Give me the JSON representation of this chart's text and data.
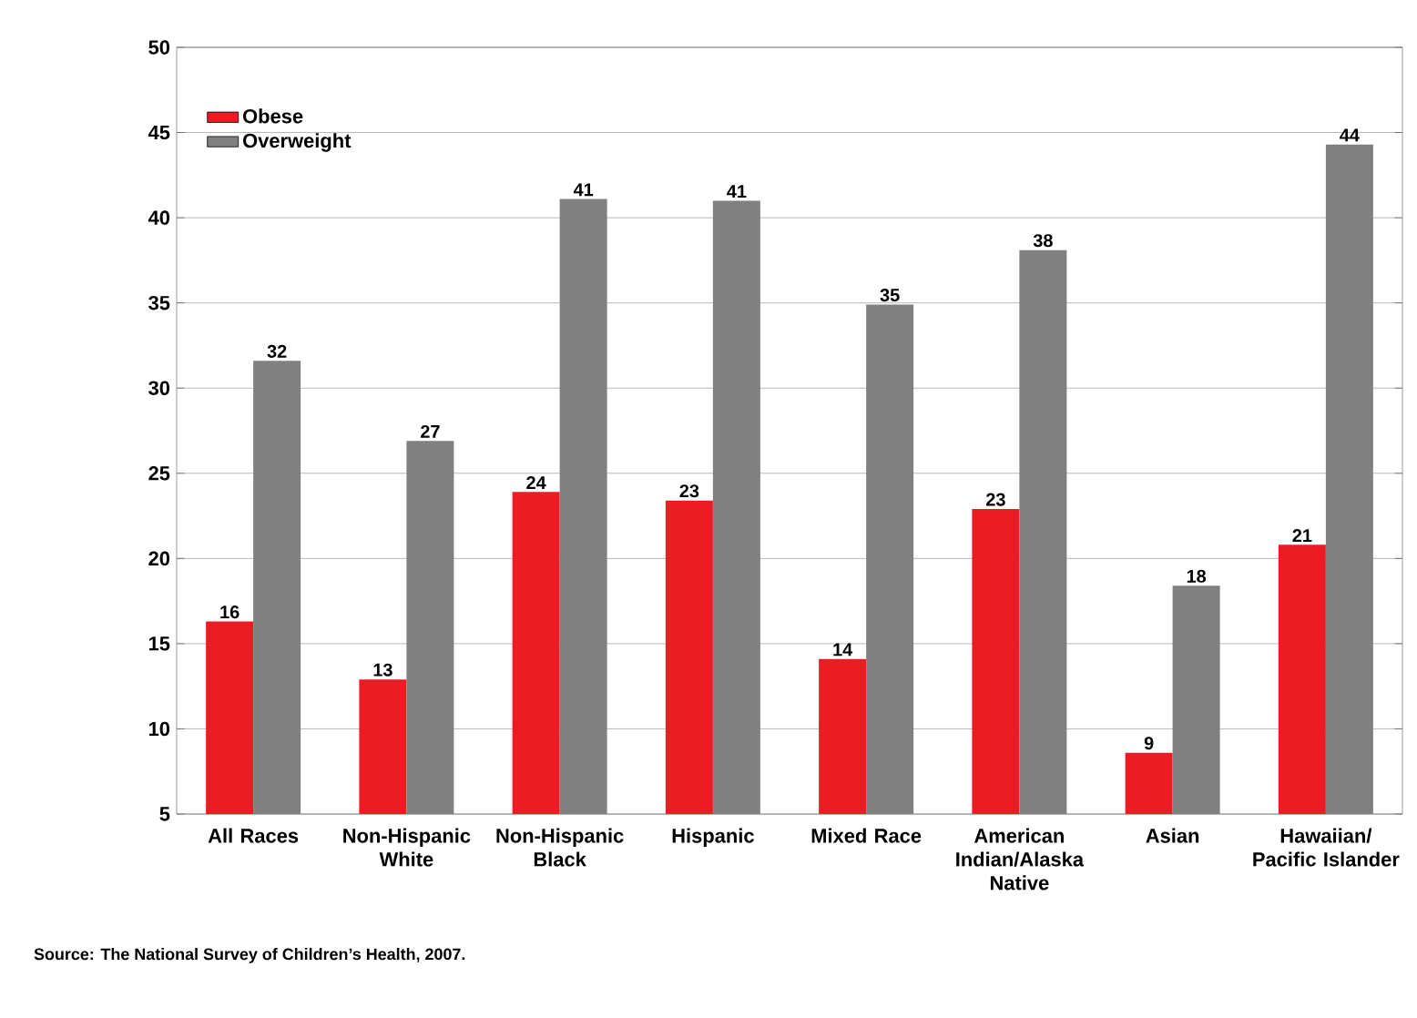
{
  "chart_data": {
    "type": "bar",
    "categories": [
      "All Races",
      "Non-Hispanic White",
      "Non-Hispanic Black",
      "Hispanic",
      "Mixed Race",
      "American Indian/Alaska Native",
      "Asian",
      "Hawaiian/ Pacific Islander"
    ],
    "series": [
      {
        "name": "Obese",
        "color": "#ed1c24",
        "values": [
          16.3,
          12.9,
          23.9,
          23.4,
          14.1,
          22.9,
          8.6,
          20.8
        ],
        "value_labels": [
          "16",
          "13",
          "24",
          "23",
          "14",
          "23",
          "9",
          "21"
        ]
      },
      {
        "name": "Overweight",
        "color": "#808080",
        "values": [
          31.6,
          26.9,
          41.1,
          41.0,
          34.9,
          38.1,
          18.4,
          44.3
        ],
        "value_labels": [
          "32",
          "27",
          "41",
          "41",
          "35",
          "38",
          "18",
          "44"
        ]
      }
    ],
    "ylim": [
      5,
      50
    ],
    "yticks": [
      5,
      10,
      15,
      20,
      25,
      30,
      35,
      40,
      45,
      50
    ],
    "grid": "y",
    "legend": "top left",
    "annotations": [
      "Source: The National Survey of Children’s Health, 2007."
    ]
  }
}
